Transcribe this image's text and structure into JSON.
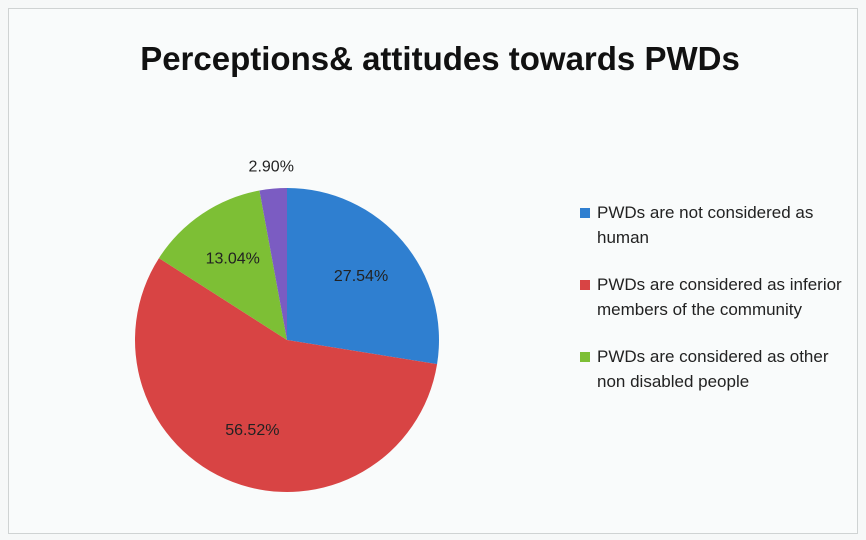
{
  "chart_data": {
    "type": "pie",
    "title": "Perceptions& attitudes towards PWDs",
    "categories": [
      "PWDs are not considered as human",
      "PWDs are considered as inferior members of the community",
      "PWDs are considered as other non disabled people",
      null
    ],
    "values": [
      27.54,
      56.52,
      13.04,
      2.9
    ],
    "value_labels": [
      "27.54%",
      "56.52%",
      "13.04%",
      "2.90%"
    ],
    "colors": [
      "#2f7fd0",
      "#d84444",
      "#7dbf35",
      "#7b5cc2"
    ],
    "legend": "right"
  }
}
